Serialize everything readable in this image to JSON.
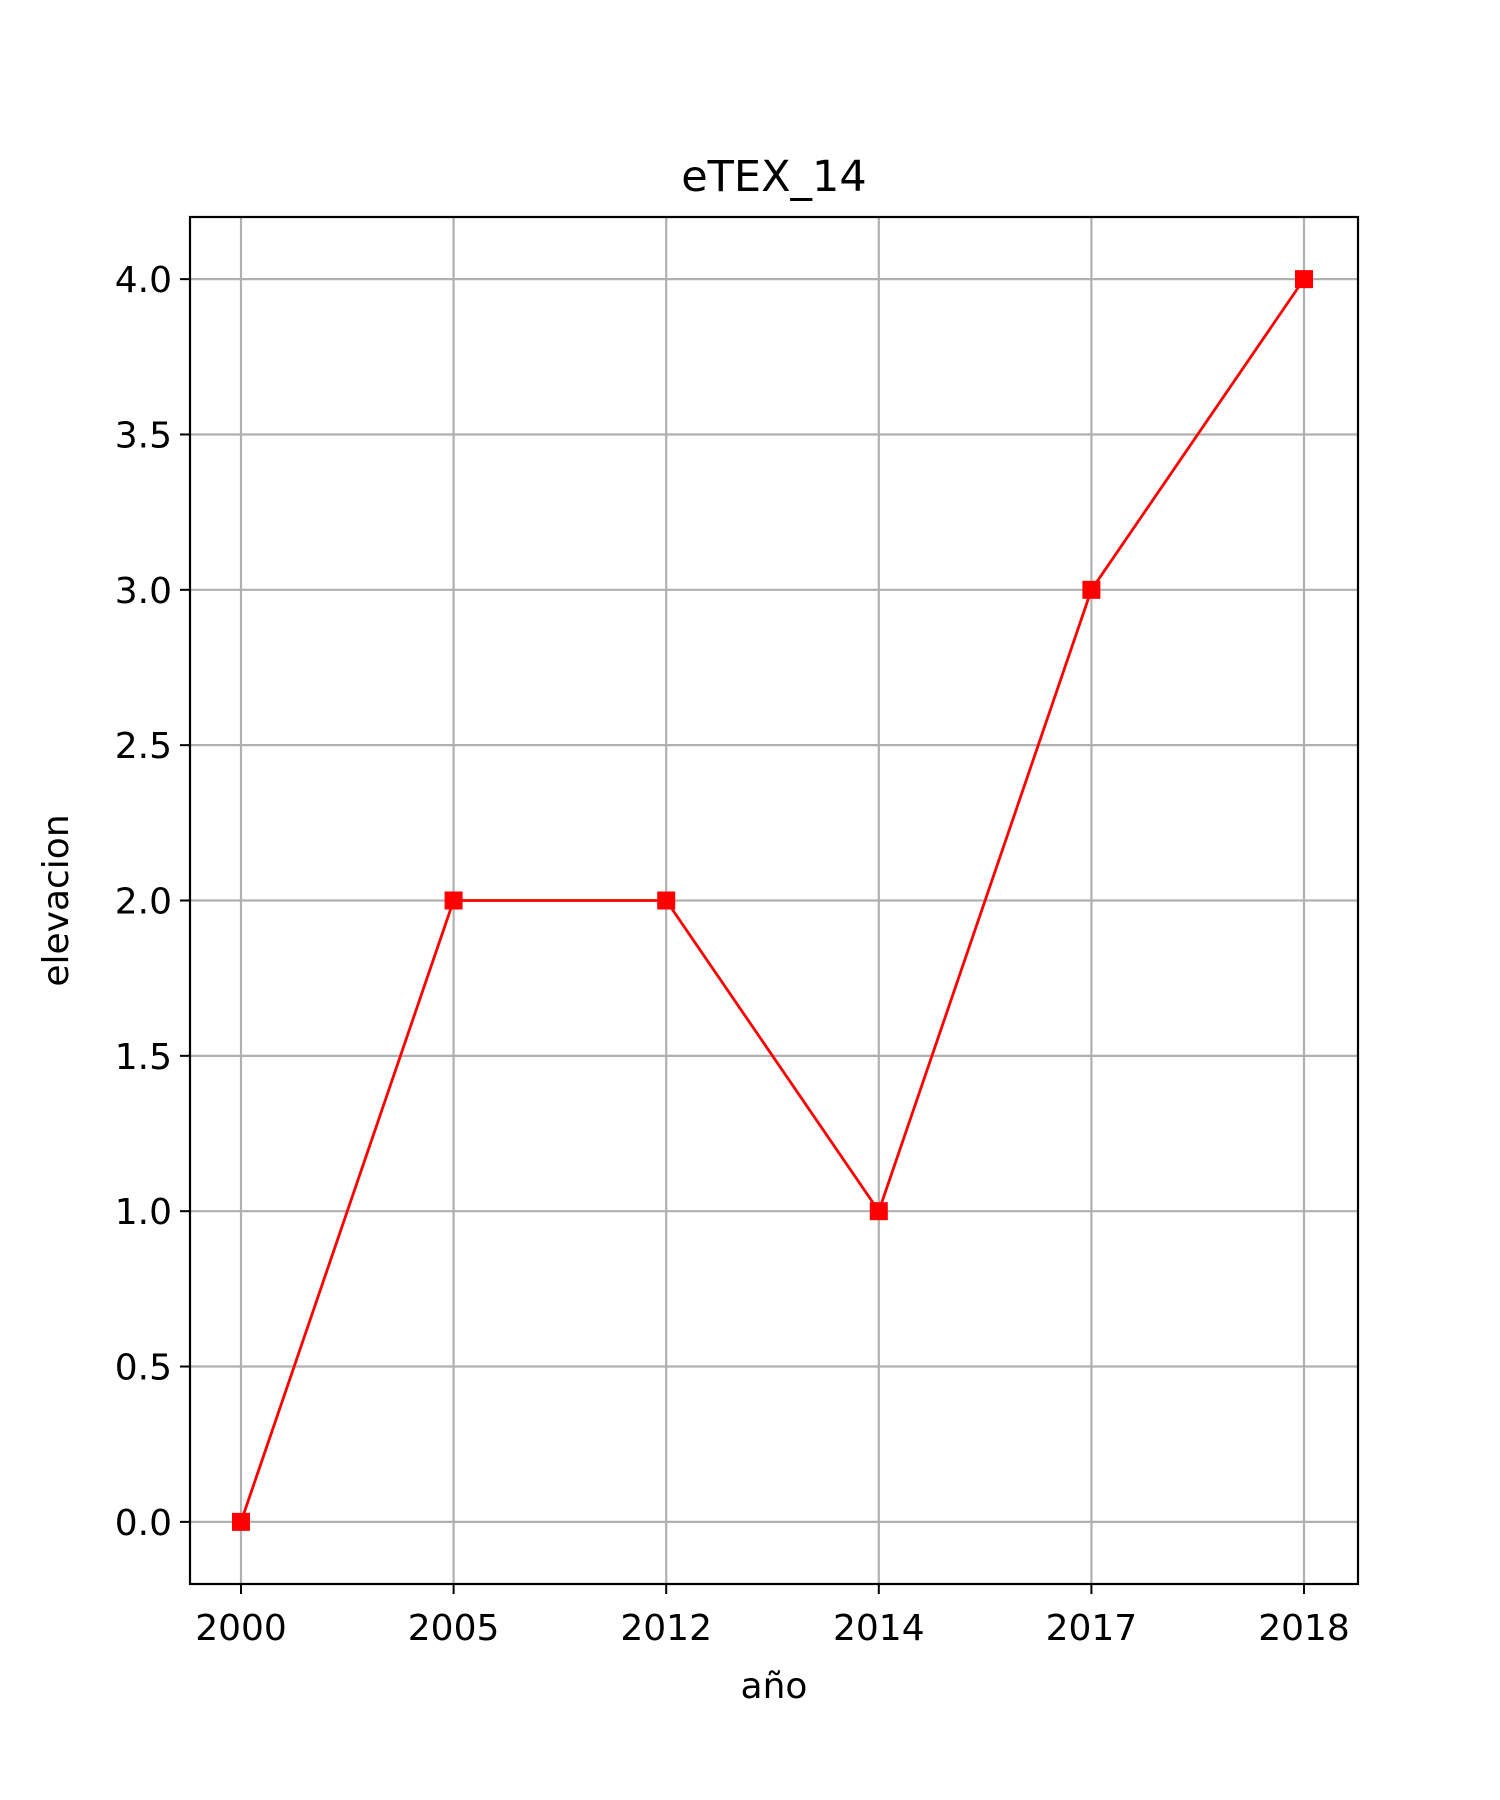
{
  "chart_data": {
    "type": "line",
    "title": "eTEX_14",
    "xlabel": "año",
    "ylabel": "elevacion",
    "categories": [
      "2000",
      "2005",
      "2012",
      "2014",
      "2017",
      "2018"
    ],
    "series": [
      {
        "values": [
          0.0,
          2.0,
          2.0,
          1.0,
          3.0,
          4.0
        ],
        "color": "#ff0000",
        "marker": "square"
      }
    ],
    "yticks": [
      "0.0",
      "0.5",
      "1.0",
      "1.5",
      "2.0",
      "2.5",
      "3.0",
      "3.5",
      "4.0"
    ],
    "ylim": [
      -0.2,
      4.2
    ],
    "grid": true,
    "legend": "none"
  }
}
